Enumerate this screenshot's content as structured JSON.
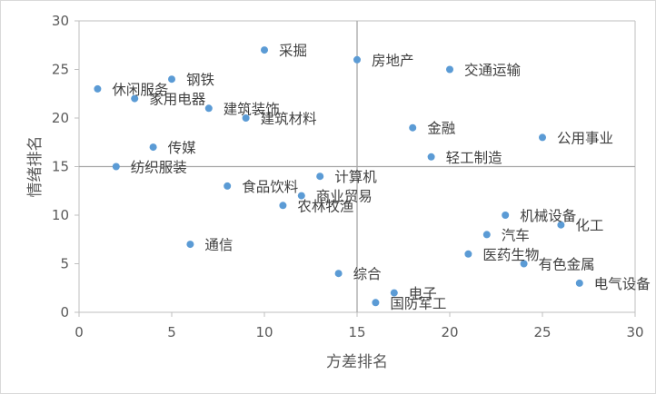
{
  "chart_data": {
    "type": "scatter",
    "xlabel": "方差排名",
    "ylabel": "情绪排名",
    "xlim": [
      0,
      30
    ],
    "ylim": [
      0,
      30
    ],
    "xticks": [
      0,
      5,
      10,
      15,
      20,
      25,
      30
    ],
    "yticks": [
      0,
      5,
      10,
      15,
      20,
      25,
      30
    ],
    "grid": false,
    "reference_lines": {
      "x": 15,
      "y": 15
    },
    "colors": {
      "point": "#5b9bd5",
      "axis": "#bfbfbf",
      "reference": "#a6a6a6"
    },
    "points": [
      {
        "label": "采掘",
        "x": 10,
        "y": 27
      },
      {
        "label": "房地产",
        "x": 15,
        "y": 26
      },
      {
        "label": "交通运输",
        "x": 20,
        "y": 25
      },
      {
        "label": "休闲服务",
        "x": 1,
        "y": 23
      },
      {
        "label": "钢铁",
        "x": 5,
        "y": 24
      },
      {
        "label": "家用电器",
        "x": 3,
        "y": 22
      },
      {
        "label": "建筑装饰",
        "x": 7,
        "y": 21
      },
      {
        "label": "建筑材料",
        "x": 9,
        "y": 20
      },
      {
        "label": "金融",
        "x": 18,
        "y": 19
      },
      {
        "label": "公用事业",
        "x": 25,
        "y": 18
      },
      {
        "label": "传媒",
        "x": 4,
        "y": 17
      },
      {
        "label": "轻工制造",
        "x": 19,
        "y": 16
      },
      {
        "label": "纺织服装",
        "x": 2,
        "y": 15
      },
      {
        "label": "计算机",
        "x": 13,
        "y": 14
      },
      {
        "label": "食品饮料",
        "x": 8,
        "y": 13
      },
      {
        "label": "商业贸易",
        "x": 12,
        "y": 12
      },
      {
        "label": "农林牧渔",
        "x": 11,
        "y": 11
      },
      {
        "label": "机械设备",
        "x": 23,
        "y": 10
      },
      {
        "label": "化工",
        "x": 26,
        "y": 9
      },
      {
        "label": "汽车",
        "x": 22,
        "y": 8
      },
      {
        "label": "通信",
        "x": 6,
        "y": 7
      },
      {
        "label": "医药生物",
        "x": 21,
        "y": 6
      },
      {
        "label": "有色金属",
        "x": 24,
        "y": 5
      },
      {
        "label": "综合",
        "x": 14,
        "y": 4
      },
      {
        "label": "电气设备",
        "x": 27,
        "y": 3
      },
      {
        "label": "电子",
        "x": 17,
        "y": 2
      },
      {
        "label": "国防军工",
        "x": 16,
        "y": 1
      }
    ]
  }
}
